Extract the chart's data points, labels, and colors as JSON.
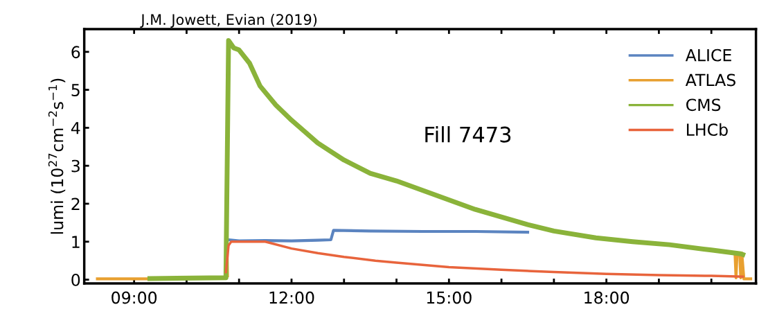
{
  "chart_data": {
    "type": "line",
    "annotations": [
      "J.M. Jowett, Evian (2019)",
      "Fill 7473"
    ],
    "ylabel": "lumi (10$^{27}$cm$^{−2}$s$^{−1}$)",
    "xlim": [
      8.05,
      20.85
    ],
    "ylim": [
      -0.1,
      6.6
    ],
    "xticks": [
      {
        "value": 9,
        "label": "09:00"
      },
      {
        "value": 10,
        "label": null
      },
      {
        "value": 11,
        "label": null
      },
      {
        "value": 12,
        "label": "12:00"
      },
      {
        "value": 13,
        "label": null
      },
      {
        "value": 14,
        "label": null
      },
      {
        "value": 15,
        "label": "15:00"
      },
      {
        "value": 16,
        "label": null
      },
      {
        "value": 17,
        "label": null
      },
      {
        "value": 18,
        "label": "18:00"
      },
      {
        "value": 19,
        "label": null
      },
      {
        "value": 20,
        "label": null
      }
    ],
    "yticks": [
      0,
      1,
      2,
      3,
      4,
      5,
      6
    ],
    "grid": false,
    "legend": "top right",
    "marker": "none",
    "line_style": "solid",
    "series": [
      {
        "name": "ALICE",
        "color": "#5b84c0",
        "x": [
          10.8,
          11.0,
          11.5,
          12.0,
          12.5,
          12.75,
          12.8,
          13.5,
          14.5,
          15.5,
          16.5
        ],
        "values": [
          1.05,
          1.02,
          1.03,
          1.02,
          1.04,
          1.05,
          1.3,
          1.28,
          1.27,
          1.27,
          1.25
        ]
      },
      {
        "name": "ATLAS",
        "color": "#e8a030",
        "x": [
          8.3,
          9.3,
          9.35,
          10.74,
          10.76,
          10.78,
          10.8,
          20.45,
          20.47,
          20.49,
          20.54,
          20.56,
          20.58,
          20.62,
          20.75
        ],
        "values": [
          0.02,
          0.02,
          null,
          0.05,
          1.7,
          0.1,
          null,
          0.7,
          0.05,
          0.7,
          0.7,
          0.05,
          0.7,
          0.02,
          0.02
        ]
      },
      {
        "name": "CMS",
        "color": "#8ab33a",
        "x": [
          9.3,
          10.75,
          10.8,
          10.9,
          11.0,
          11.2,
          11.4,
          11.7,
          12.0,
          12.5,
          13.0,
          13.5,
          14.0,
          14.5,
          15.0,
          15.5,
          16.0,
          16.5,
          17.0,
          17.8,
          18.5,
          19.2,
          20.0,
          20.56,
          20.6
        ],
        "values": [
          0.03,
          0.05,
          6.3,
          6.1,
          6.05,
          5.7,
          5.1,
          4.6,
          4.2,
          3.6,
          3.15,
          2.8,
          2.6,
          2.35,
          2.1,
          1.85,
          1.65,
          1.45,
          1.28,
          1.1,
          1.0,
          0.92,
          0.78,
          0.68,
          0.66
        ]
      },
      {
        "name": "LHCb",
        "color": "#e8643c",
        "x": [
          10.75,
          10.8,
          10.85,
          11.0,
          11.5,
          12.0,
          12.5,
          13.0,
          13.6,
          14.0,
          15.0,
          16.0,
          17.0,
          18.0,
          19.0,
          20.0,
          20.6
        ],
        "values": [
          0.2,
          0.9,
          1.0,
          1.0,
          1.0,
          0.82,
          0.7,
          0.6,
          0.5,
          0.45,
          0.33,
          0.26,
          0.2,
          0.15,
          0.12,
          0.1,
          0.08
        ]
      }
    ]
  }
}
